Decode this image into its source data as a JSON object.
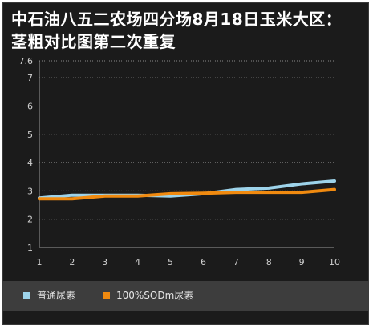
{
  "chart_data": {
    "type": "line",
    "title": "中石油八五二农场四分场8月18日玉米大区：茎粗对比图第二次重复",
    "x": [
      1,
      2,
      3,
      4,
      5,
      6,
      7,
      8,
      9,
      10
    ],
    "xlim": [
      1,
      10
    ],
    "ylim": [
      1,
      7.6
    ],
    "y_ticks": [
      "1",
      "2",
      "3",
      "4",
      "5",
      "6",
      "7",
      "7.6"
    ],
    "x_ticks": [
      "1",
      "2",
      "3",
      "4",
      "5",
      "6",
      "7",
      "8",
      "9",
      "10"
    ],
    "grid": true,
    "legend_position": "bottom-left",
    "series": [
      {
        "name": "普通尿素",
        "color": "#9dd3ea",
        "values": [
          2.75,
          2.85,
          2.85,
          2.85,
          2.82,
          2.9,
          3.05,
          3.1,
          3.25,
          3.35
        ]
      },
      {
        "name": "100%SODm尿素",
        "color": "#f08a10",
        "values": [
          2.72,
          2.72,
          2.82,
          2.82,
          2.9,
          2.92,
          2.95,
          2.95,
          2.95,
          3.05
        ]
      }
    ]
  }
}
